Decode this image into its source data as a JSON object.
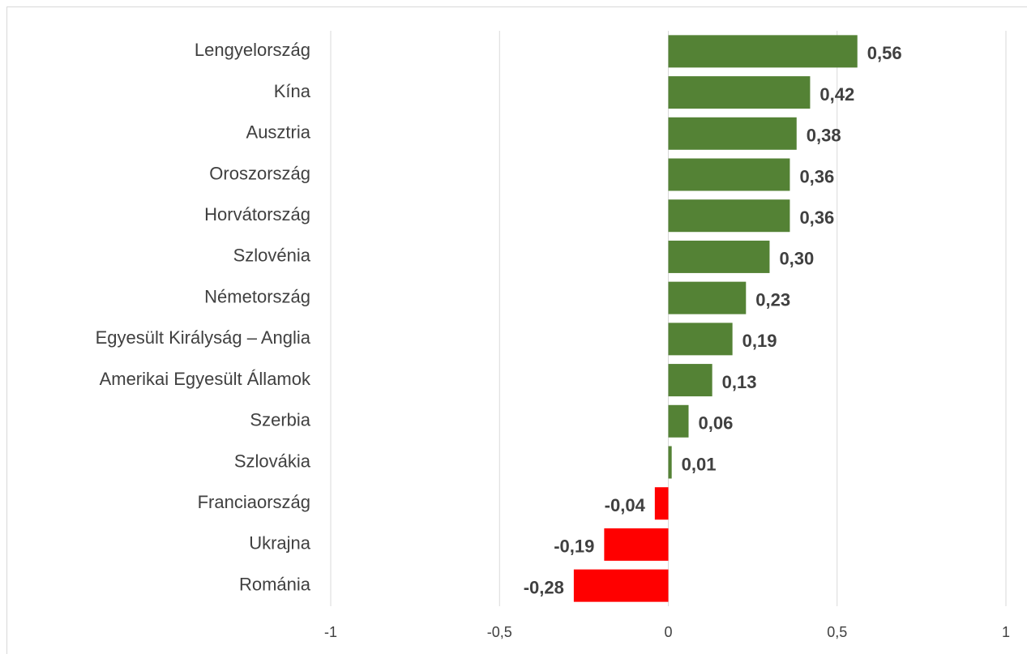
{
  "chart_data": {
    "type": "hbar",
    "categories": [
      "Lengyelország",
      "Kína",
      "Ausztria",
      "Oroszország",
      "Horvátország",
      "Szlovénia",
      "Németország",
      "Egyesült Királyság – Anglia",
      "Amerikai Egyesült Államok",
      "Szerbia",
      "Szlovákia",
      "Franciaország",
      "Ukrajna",
      "Románia"
    ],
    "values": [
      0.56,
      0.42,
      0.38,
      0.36,
      0.36,
      0.3,
      0.23,
      0.19,
      0.13,
      0.06,
      0.01,
      -0.04,
      -0.19,
      -0.28
    ],
    "value_labels": [
      "0,56",
      "0,42",
      "0,38",
      "0,36",
      "0,36",
      "0,30",
      "0,23",
      "0,19",
      "0,13",
      "0,06",
      "0,01",
      "-0,04",
      "-0,19",
      "-0,28"
    ],
    "color": "#548235",
    "negative_color": "#ff0000",
    "xlim": [
      -1,
      1
    ],
    "xticks": [
      -1,
      {
        "value": -0.5,
        "label": "-0,5"
      },
      0,
      {
        "value": 0.5,
        "label": "0,5"
      },
      1
    ],
    "grid": true
  }
}
